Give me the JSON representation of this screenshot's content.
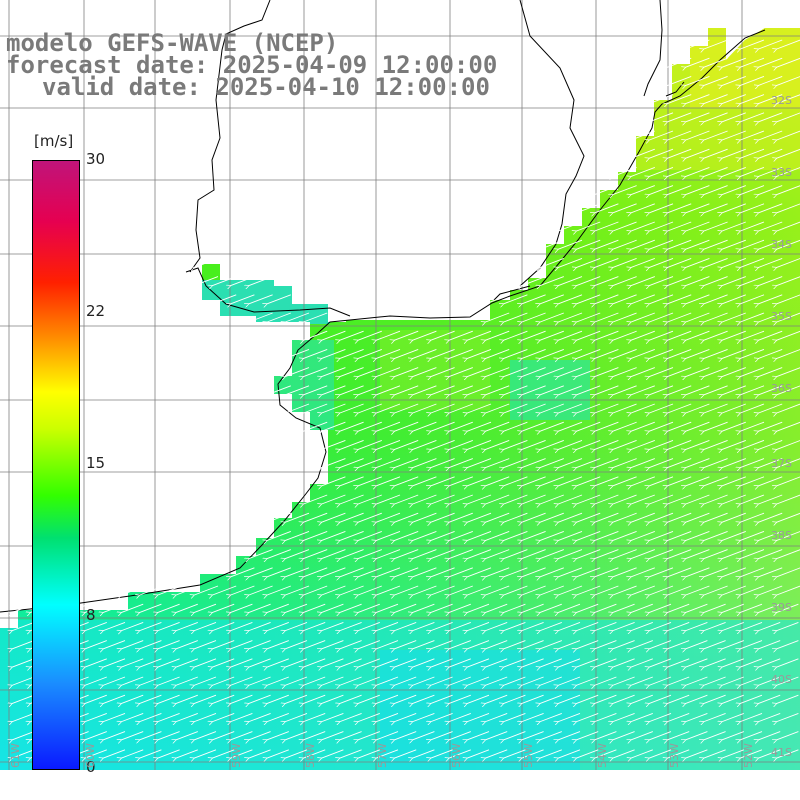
{
  "title": {
    "line1": "modelo GEFS-WAVE (NCEP)",
    "line2": "forecast date: 2025-04-09 12:00:00",
    "line3": "valid date: 2025-04-10 12:00:00"
  },
  "legend": {
    "units": "[m/s]",
    "ticks": [
      "30",
      "22",
      "15",
      "8",
      "0"
    ],
    "tick_values": [
      30,
      22,
      15,
      8,
      0
    ],
    "colors": {
      "blue": "#0a1aff",
      "cyan": "#00ffff",
      "green": "#33ff00",
      "yellow": "#ffff00",
      "orange": "#ff8c00",
      "red": "#ff2000",
      "magenta": "#c0147a"
    }
  },
  "latitude_labels": [
    "32S",
    "33S",
    "34S",
    "35S",
    "36S",
    "37S",
    "38S",
    "39S",
    "40S",
    "41S"
  ],
  "longitude_labels": [
    "61W",
    "60W",
    "59W",
    "58W",
    "57W",
    "56W",
    "55W",
    "54W",
    "53W",
    "52W"
  ],
  "field": {
    "variable": "wind speed",
    "units": "m/s",
    "arrow_direction": "southwest",
    "land_color": "#ffffff",
    "coast_color": "#000000"
  }
}
